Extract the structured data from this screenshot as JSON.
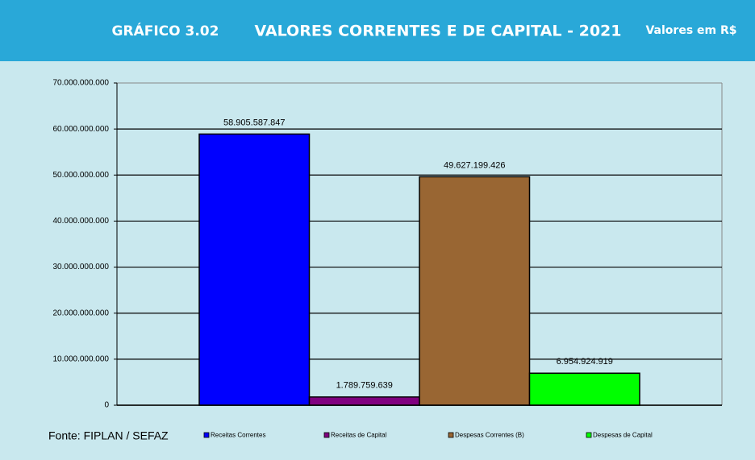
{
  "chart_data": {
    "type": "bar",
    "header_left": "GRÁFICO 3.02",
    "title": "VALORES CORRENTES E DE CAPITAL - 2021",
    "header_right": "Valores em R$",
    "source": "Fonte: FIPLAN / SEFAZ",
    "categories": [
      null
    ],
    "series": [
      {
        "name": "Receitas Correntes",
        "color": "#0000ff",
        "values": [
          58905587847
        ],
        "value_labels": [
          "58.905.587.847"
        ]
      },
      {
        "name": "Receitas de Capital",
        "color": "#800080",
        "values": [
          1789759639
        ],
        "value_labels": [
          "1.789.759.639"
        ]
      },
      {
        "name": "Despesas Correntes (B)",
        "color": "#996633",
        "values": [
          49627199426
        ],
        "value_labels": [
          "49.627.199.426"
        ]
      },
      {
        "name": "Despesas de Capital",
        "color": "#00ff00",
        "values": [
          6954924919
        ],
        "value_labels": [
          "6.954.924.919"
        ]
      }
    ],
    "ylim": [
      0,
      70000000000
    ],
    "yticks": [
      0,
      {
        "value": 10000000000,
        "label": "10.000.000.000"
      },
      {
        "value": 20000000000,
        "label": "20.000.000.000"
      },
      {
        "value": 30000000000,
        "label": "30.000.000.000"
      },
      {
        "value": 40000000000,
        "label": "40.000.000.000"
      },
      {
        "value": 50000000000,
        "label": "50.000.000.000"
      },
      {
        "value": 60000000000,
        "label": "60.000.000.000"
      },
      {
        "value": 70000000000,
        "label": "70.000.000.000"
      }
    ],
    "grid": true
  }
}
